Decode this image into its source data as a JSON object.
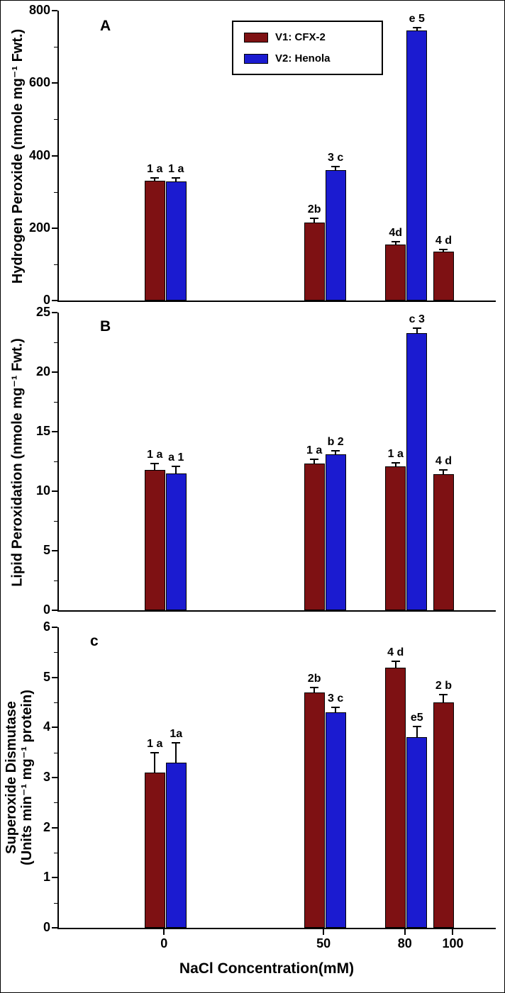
{
  "chart_data": {
    "type": "bar",
    "x_axis": {
      "label": "NaCl Concentration(mM)",
      "categories": [
        "0",
        "50",
        "80",
        "100"
      ]
    },
    "series_meta": [
      {
        "name": "V1: CFX-2",
        "color": "#7e1113"
      },
      {
        "name": "V2: Henola",
        "color": "#1b1bd0"
      }
    ],
    "legend_position": "top-center-panel-A",
    "grid": "off",
    "panels": [
      {
        "letter": "A",
        "ylabel": "Hydrogen Peroxide (nmole mg⁻¹ Fwt.)",
        "ylim": [
          0,
          800
        ],
        "yticks": [
          0,
          200,
          400,
          600,
          800
        ],
        "series": [
          {
            "name": "V1: CFX-2",
            "values": [
              330,
              215,
              155,
              135
            ],
            "errors": [
              8,
              12,
              8,
              5
            ],
            "labels": [
              "1 a",
              "2b",
              "4d",
              "4 d"
            ]
          },
          {
            "name": "V2: Henola",
            "values": [
              328,
              360,
              745,
              null
            ],
            "errors": [
              10,
              10,
              8,
              null
            ],
            "labels": [
              "1 a",
              "3 c",
              "e 5",
              ""
            ]
          }
        ]
      },
      {
        "letter": "B",
        "ylabel": "Lipid Peroxidation (nmole mg⁻¹ Fwt.)",
        "ylim": [
          0,
          25
        ],
        "yticks": [
          0,
          5,
          10,
          15,
          20,
          25
        ],
        "series": [
          {
            "name": "V1: CFX-2",
            "values": [
              11.8,
              12.3,
              12.1,
              11.4
            ],
            "errors": [
              0.5,
              0.4,
              0.3,
              0.4
            ],
            "labels": [
              "1 a",
              "1 a",
              "1 a",
              "4 d"
            ]
          },
          {
            "name": "V2: Henola",
            "values": [
              11.5,
              13.1,
              23.3,
              null
            ],
            "errors": [
              0.6,
              0.3,
              0.4,
              null
            ],
            "labels": [
              "a 1",
              "b 2",
              "c 3",
              ""
            ]
          }
        ]
      },
      {
        "letter": "c",
        "ylabel_line1": "Superoxide Dismutase",
        "ylabel_line2": "(Units min⁻¹ mg⁻¹ protein)",
        "ylim": [
          0,
          6
        ],
        "yticks": [
          0,
          1,
          2,
          3,
          4,
          5,
          6
        ],
        "series": [
          {
            "name": "V1: CFX-2",
            "values": [
              3.1,
              4.7,
              5.2,
              4.5
            ],
            "errors": [
              0.4,
              0.1,
              0.12,
              0.15
            ],
            "labels": [
              "1 a",
              "2b",
              "4 d",
              "2 b"
            ]
          },
          {
            "name": "V2: Henola",
            "values": [
              3.3,
              4.3,
              3.8,
              null
            ],
            "errors": [
              0.4,
              0.1,
              0.22,
              null
            ],
            "labels": [
              "1a",
              "3 c",
              "e5",
              ""
            ]
          }
        ]
      }
    ]
  }
}
